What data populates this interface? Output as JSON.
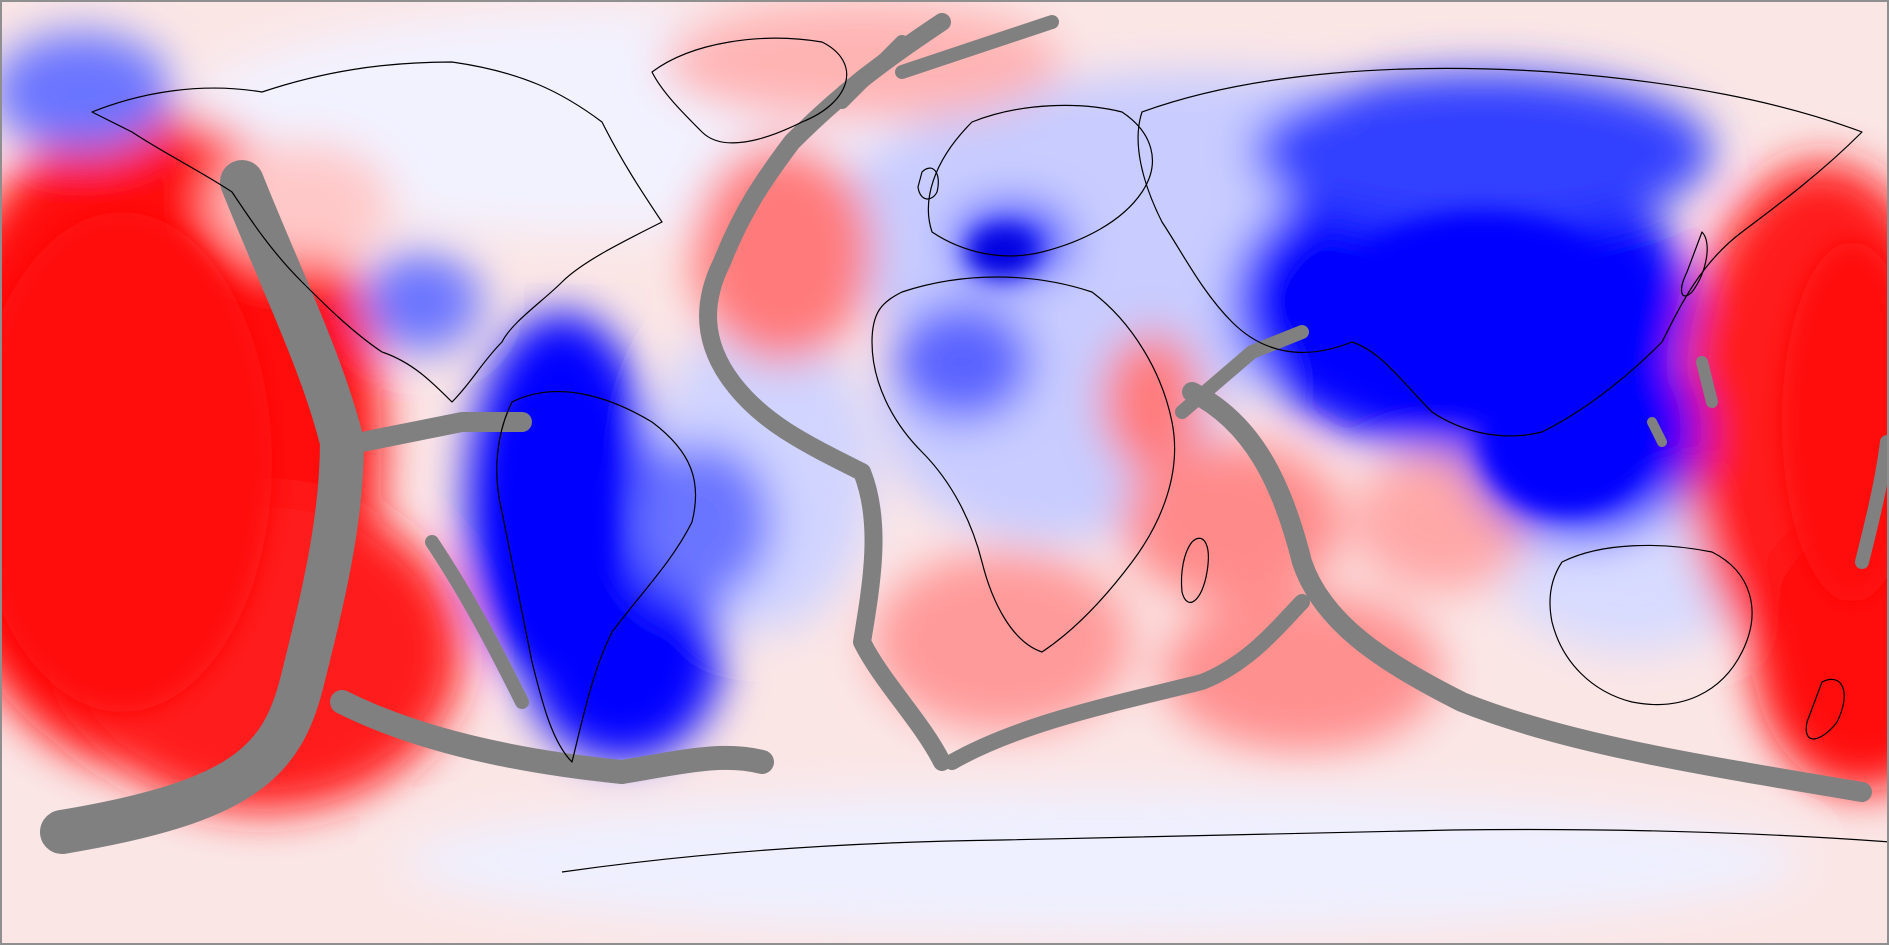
{
  "map": {
    "projection": "equirectangular",
    "center_longitude": -20,
    "colors": {
      "strong_positive": "#ff0d0d",
      "positive": "#ff7a7a",
      "weak_positive": "#ffd2d2",
      "neutral": "#f7f7ff",
      "weak_negative": "#c8ccff",
      "negative": "#5a64ff",
      "strong_negative": "#0000ff",
      "plate_boundary": "#808080",
      "coastline": "#000000",
      "frame": "#8f8f8f"
    },
    "layers": [
      "anomaly-field",
      "plate-boundaries",
      "coastlines"
    ]
  }
}
